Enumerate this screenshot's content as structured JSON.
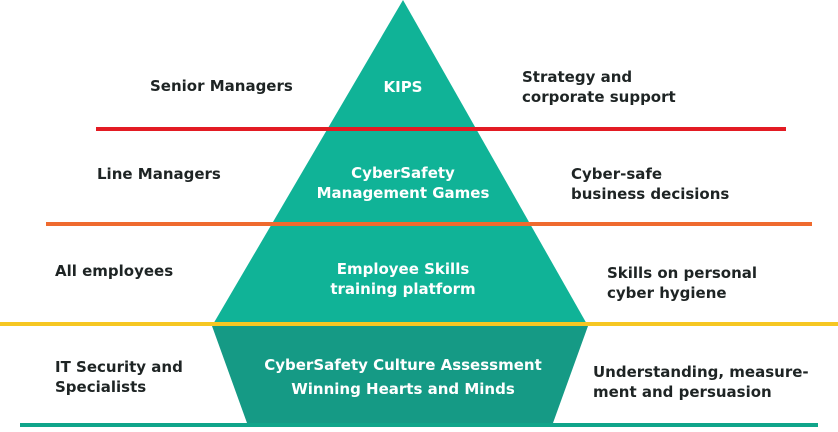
{
  "colors": {
    "pyramid": "#10b397",
    "base": "#159a85",
    "line_level1": "#e31b23",
    "line_level2": "#ef6a2e",
    "line_level3": "#f6c722",
    "line_bottom": "#10a58a",
    "text_dark": "#1e2424",
    "text_light": "#ffffff"
  },
  "levels": [
    {
      "audience": [
        "Senior Managers"
      ],
      "program": [
        "KIPS"
      ],
      "outcome": [
        "Strategy and",
        "corporate support"
      ]
    },
    {
      "audience": [
        "Line Managers"
      ],
      "program": [
        "CyberSafety",
        "Management Games"
      ],
      "outcome": [
        "Cyber-safe",
        "business decisions"
      ]
    },
    {
      "audience": [
        "All employees"
      ],
      "program": [
        "Employee Skills",
        "training platform"
      ],
      "outcome": [
        "Skills on personal",
        "cyber hygiene"
      ]
    },
    {
      "audience": [
        "IT Security and",
        "Specialists"
      ],
      "program": [
        "CyberSafety Culture Assessment",
        "Winning Hearts and Minds"
      ],
      "outcome": [
        "Understanding, measure-",
        "ment and persuasion"
      ]
    }
  ]
}
